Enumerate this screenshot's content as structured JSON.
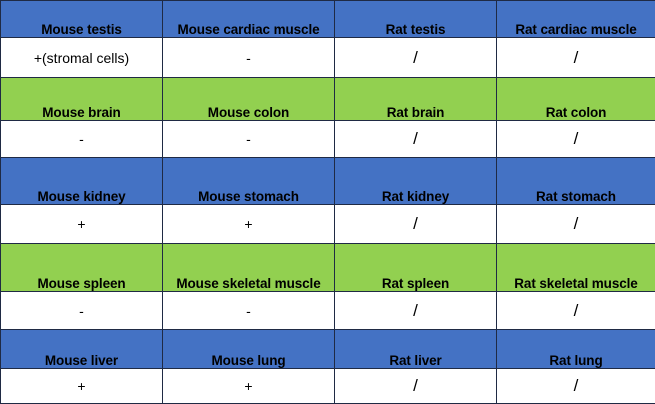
{
  "colors": {
    "blue_row": "#4472c4",
    "green_row": "#92d050",
    "value_row": "#ffffff"
  },
  "rows": [
    {
      "headers": [
        "Mouse testis",
        "Mouse cardiac muscle",
        "Rat testis",
        "Rat cardiac muscle"
      ],
      "values": [
        "+(stromal cells)",
        "-",
        "/",
        "/"
      ]
    },
    {
      "headers": [
        "Mouse brain",
        "Mouse colon",
        "Rat brain",
        "Rat colon"
      ],
      "values": [
        "-",
        "-",
        "/",
        "/"
      ]
    },
    {
      "headers": [
        "Mouse kidney",
        "Mouse stomach",
        "Rat kidney",
        "Rat stomach"
      ],
      "values": [
        "+",
        "+",
        "/",
        "/"
      ]
    },
    {
      "headers": [
        "Mouse spleen",
        "Mouse skeletal muscle",
        "Rat spleen",
        "Rat skeletal muscle"
      ],
      "values": [
        "-",
        "-",
        "/",
        "/"
      ]
    },
    {
      "headers": [
        "Mouse liver",
        "Mouse lung",
        "Rat liver",
        "Rat lung"
      ],
      "values": [
        "+",
        "+",
        "/",
        "/"
      ]
    }
  ]
}
